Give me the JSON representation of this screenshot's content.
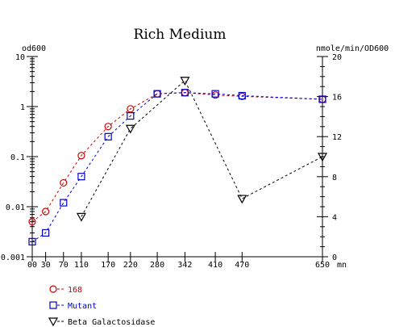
{
  "chart_data": {
    "type": "line",
    "title": "Rich Medium",
    "y_left_label": "od600",
    "y_right_label": "nmole/min/OD600",
    "x_unit_label": "mn",
    "x_ticks": [
      0,
      30,
      70,
      110,
      170,
      220,
      280,
      342,
      410,
      470,
      650
    ],
    "x_tick_labels": [
      "00",
      "30",
      "70",
      "110",
      "170",
      "220",
      "280",
      "342",
      "410",
      "470",
      "650"
    ],
    "xlim": [
      0,
      650
    ],
    "y_left": {
      "scale": "log",
      "ylim": [
        0.001,
        10
      ],
      "ticks": [
        0.001,
        0.01,
        0.1,
        1,
        10
      ],
      "tick_labels": [
        "0.001",
        "0.01",
        "0.1",
        "1",
        "10"
      ]
    },
    "y_right": {
      "scale": "linear",
      "ylim": [
        0,
        20
      ],
      "ticks": [
        0,
        4,
        8,
        12,
        16,
        20
      ],
      "tick_labels": [
        "0",
        "4",
        "8",
        "12",
        "16",
        "20"
      ]
    },
    "grid": false,
    "legend_position": "bottom-left",
    "series": [
      {
        "name": "168",
        "axis": "left",
        "color": "#cc0000",
        "marker": "circle",
        "x": [
          0,
          30,
          70,
          110,
          170,
          220,
          280,
          342,
          410,
          470,
          650
        ],
        "values": [
          0.005,
          0.008,
          0.03,
          0.105,
          0.4,
          0.9,
          1.8,
          1.9,
          1.7,
          1.6,
          1.4
        ]
      },
      {
        "name": "Mutant",
        "axis": "left",
        "color": "#0000cc",
        "marker": "square",
        "x": [
          0,
          30,
          70,
          110,
          170,
          220,
          280,
          342,
          410,
          470,
          650
        ],
        "values": [
          0.002,
          0.003,
          0.012,
          0.04,
          0.25,
          0.65,
          1.8,
          1.9,
          1.8,
          1.65,
          1.4
        ]
      },
      {
        "name": "Beta Galactosidase",
        "axis": "right",
        "color": "#000000",
        "marker": "triangle-down",
        "x": [
          110,
          220,
          342,
          470,
          650
        ],
        "values": [
          4,
          12.8,
          17.6,
          5.8,
          10
        ]
      }
    ]
  }
}
